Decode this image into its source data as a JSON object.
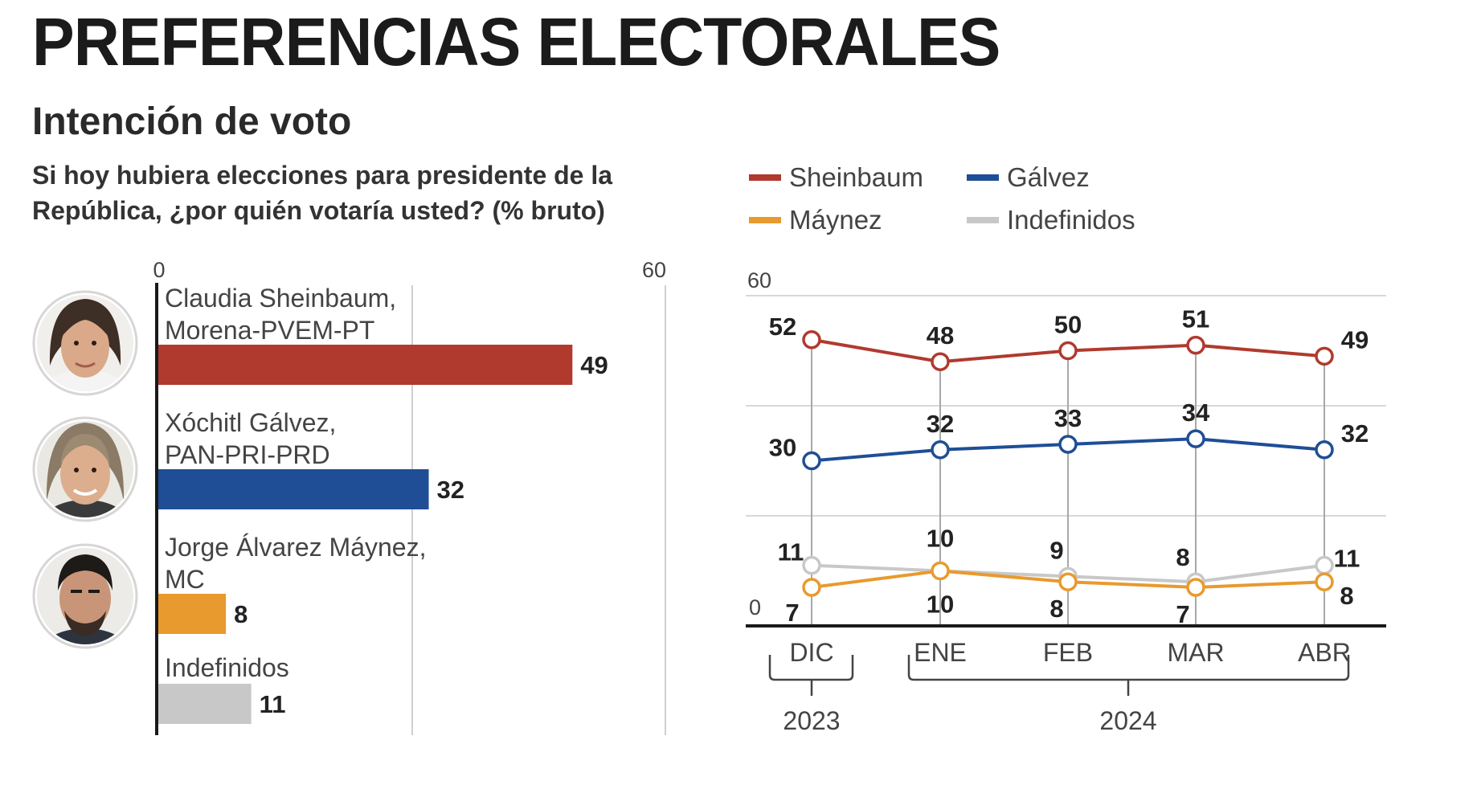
{
  "header": {
    "title": "PREFERENCIAS ELECTORALES",
    "subtitle": "Intención de voto",
    "question": "Si hoy hubiera elecciones para presidente de la República, ¿por quién votaría usted?  (% bruto)"
  },
  "legend": [
    {
      "label": "Sheinbaum",
      "color": "#b03a2e"
    },
    {
      "label": "Gálvez",
      "color": "#1f4e96"
    },
    {
      "label": "Máynez",
      "color": "#e89a2e"
    },
    {
      "label": "Indefinidos",
      "color": "#c8c8c8"
    }
  ],
  "chart_data": [
    {
      "type": "bar",
      "orientation": "horizontal",
      "xlim": [
        0,
        60
      ],
      "tick_labels": [
        "0",
        "60"
      ],
      "categories": [
        {
          "line1": "Claudia Sheinbaum,",
          "line2": "Morena-PVEM-PT",
          "value": 49,
          "color": "#b03a2e",
          "photo": "avatar-sheinbaum"
        },
        {
          "line1": "Xóchitl Gálvez,",
          "line2": "PAN-PRI-PRD",
          "value": 32,
          "color": "#1f4e96",
          "photo": "avatar-galvez"
        },
        {
          "line1": "Jorge Álvarez Máynez,",
          "line2": "MC",
          "value": 8,
          "color": "#e89a2e",
          "photo": "avatar-maynez"
        },
        {
          "line1": "Indefinidos",
          "line2": "",
          "value": 11,
          "color": "#c8c8c8",
          "photo": ""
        }
      ]
    },
    {
      "type": "line",
      "x": [
        "DIC",
        "ENE",
        "FEB",
        "MAR",
        "ABR"
      ],
      "year_groups": [
        {
          "label": "2023",
          "months": [
            "DIC"
          ]
        },
        {
          "label": "2024",
          "months": [
            "ENE",
            "FEB",
            "MAR",
            "ABR"
          ]
        }
      ],
      "ylim": [
        0,
        60
      ],
      "y_tick_labels": [
        "0",
        "60"
      ],
      "series": [
        {
          "name": "Sheinbaum",
          "color": "#b03a2e",
          "values": [
            52,
            48,
            50,
            51,
            49
          ]
        },
        {
          "name": "Gálvez",
          "color": "#1f4e96",
          "values": [
            30,
            32,
            33,
            34,
            32
          ]
        },
        {
          "name": "Máynez",
          "color": "#e89a2e",
          "values": [
            7,
            10,
            8,
            7,
            8
          ]
        },
        {
          "name": "Indefinidos",
          "color": "#c8c8c8",
          "values": [
            11,
            10,
            9,
            8,
            11
          ]
        }
      ]
    }
  ]
}
